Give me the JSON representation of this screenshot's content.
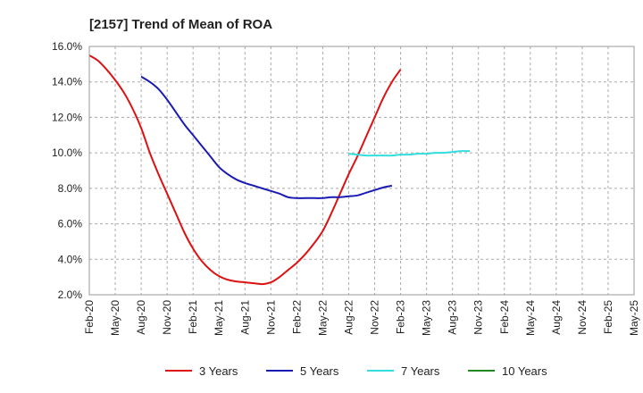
{
  "chart_data": {
    "type": "line",
    "title": "[2157]  Trend of Mean of ROA",
    "xlabel": "",
    "ylabel": "",
    "ylim": [
      2.0,
      16.0
    ],
    "y_ticks": [
      2.0,
      4.0,
      6.0,
      8.0,
      10.0,
      12.0,
      14.0,
      16.0
    ],
    "y_tick_labels": [
      "2.0%",
      "4.0%",
      "6.0%",
      "8.0%",
      "10.0%",
      "12.0%",
      "14.0%",
      "16.0%"
    ],
    "x_tick_labels": [
      "Feb-20",
      "May-20",
      "Aug-20",
      "Nov-20",
      "Feb-21",
      "May-21",
      "Aug-21",
      "Nov-21",
      "Feb-22",
      "May-22",
      "Aug-22",
      "Nov-22",
      "Feb-23",
      "May-23",
      "Aug-23",
      "Nov-23",
      "Feb-24",
      "May-24",
      "Aug-24",
      "Nov-24",
      "Feb-25",
      "May-25"
    ],
    "grid": true,
    "legend_position": "bottom",
    "series": [
      {
        "name": "3 Years",
        "color": "#dd1111",
        "start_index": 0,
        "values": [
          15.5,
          15.2,
          14.7,
          14.1,
          13.4,
          12.5,
          11.4,
          10.0,
          8.8,
          7.7,
          6.6,
          5.5,
          4.6,
          3.9,
          3.4,
          3.05,
          2.85,
          2.75,
          2.7,
          2.65,
          2.6,
          2.7,
          3.0,
          3.4,
          3.8,
          4.3,
          4.9,
          5.6,
          6.6,
          7.7,
          8.8,
          9.8,
          10.9,
          12.0,
          13.1,
          14.0,
          14.7
        ]
      },
      {
        "name": "5 Years",
        "color": "#1a1ab4",
        "start_index": 6,
        "values": [
          14.3,
          14.0,
          13.6,
          13.0,
          12.3,
          11.6,
          11.0,
          10.4,
          9.8,
          9.2,
          8.8,
          8.5,
          8.3,
          8.15,
          8.0,
          7.85,
          7.7,
          7.5,
          7.45,
          7.45,
          7.45,
          7.45,
          7.5,
          7.5,
          7.55,
          7.6,
          7.75,
          7.9,
          8.05,
          8.15
        ]
      },
      {
        "name": "7 Years",
        "color": "#33dddd",
        "start_index": 30,
        "values": [
          9.95,
          9.9,
          9.85,
          9.85,
          9.85,
          9.85,
          9.9,
          9.9,
          9.95,
          9.95,
          10.0,
          10.0,
          10.05,
          10.1,
          10.1
        ]
      },
      {
        "name": "10 Years",
        "color": "#228822",
        "start_index": 0,
        "values": []
      }
    ]
  }
}
